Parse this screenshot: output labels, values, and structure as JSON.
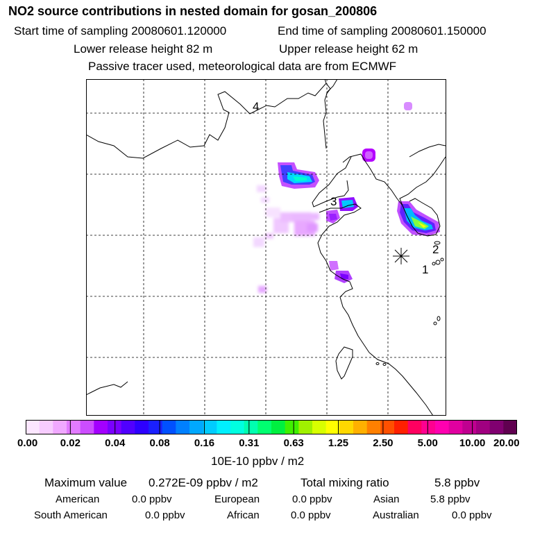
{
  "header": {
    "title": "NO2 source contributions in nested domain for gosan_200806",
    "start_label": "Start time of sampling 20080601.120000",
    "end_label": "End time of sampling 20080601.150000",
    "lower_release": "Lower release height   82 m",
    "upper_release": "Upper release height   62 m",
    "note": "Passive tracer used, meteorological data are from ECMWF"
  },
  "map": {
    "region_labels": [
      "1",
      "2",
      "3",
      "4"
    ],
    "receptor_marker": "gosan receptor"
  },
  "colorbar": {
    "ticks": [
      "0.00",
      "0.02",
      "0.04",
      "0.08",
      "0.16",
      "0.31",
      "0.63",
      "1.25",
      "2.50",
      "5.00",
      "10.00",
      "20.00"
    ],
    "colors": [
      "#fce6ff",
      "#f7ccff",
      "#f0a8ff",
      "#e27bff",
      "#cc4dff",
      "#a300ff",
      "#7a00ff",
      "#5000ff",
      "#2d00ff",
      "#1a20ff",
      "#0050ff",
      "#0080ff",
      "#00a8ff",
      "#00ccff",
      "#00f0ff",
      "#00ffe0",
      "#00ffb0",
      "#00ff70",
      "#00f040",
      "#40f000",
      "#a0f000",
      "#d8ff00",
      "#ffff00",
      "#ffd800",
      "#ffb000",
      "#ff8000",
      "#ff5000",
      "#ff2000",
      "#ff0060",
      "#ff0090",
      "#ff00b0",
      "#e000a0",
      "#c00090",
      "#a00080",
      "#800070",
      "#600050"
    ],
    "units": "10E-10 ppbv / m2"
  },
  "summary": {
    "max_label": "Maximum value",
    "max_value": "0.272E-09 ppbv / m2",
    "total_label": "Total mixing ratio",
    "total_value": "5.8 ppbv",
    "regions": [
      {
        "name": "American",
        "value": "0.0 ppbv"
      },
      {
        "name": "European",
        "value": "0.0 ppbv"
      },
      {
        "name": "Asian",
        "value": "5.8 ppbv"
      },
      {
        "name": "South American",
        "value": "0.0 ppbv"
      },
      {
        "name": "African",
        "value": "0.0 ppbv"
      },
      {
        "name": "Australian",
        "value": "0.0 ppbv"
      }
    ]
  }
}
